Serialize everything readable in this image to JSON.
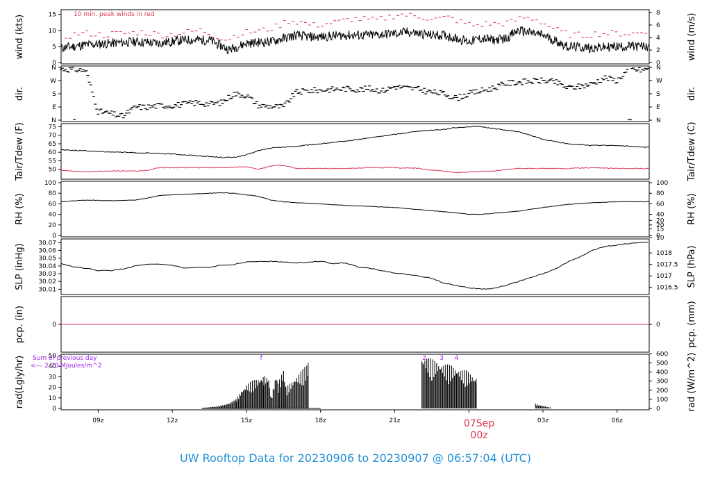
{
  "page": {
    "title": "UW Rooftop Data for 20230906  to  20230907 @ 06:57:04  (UTC)",
    "date_marker": "07Sep",
    "date_marker_sub": "00z"
  },
  "colors": {
    "data": "#000000",
    "red": "#dd3355",
    "purple": "#a020f0",
    "title": "#1f8fd6"
  },
  "chart_data": [
    {
      "type": "line",
      "name": "wind",
      "ylabel": "wind (kts)",
      "ylabel_right": "wind (m/s)",
      "ylim": [
        0,
        16
      ],
      "yticks": [
        0,
        5,
        10,
        15
      ],
      "yticks_right": [
        0,
        2,
        4,
        6,
        8
      ],
      "ylim_right": [
        0,
        8.23
      ],
      "annotation": "10 min. peak winds in red",
      "series": [
        {
          "x": [
            7.5,
            8.5,
            9.5,
            10.5,
            11.5,
            12.5,
            13.5,
            14.3,
            15,
            16,
            17,
            17.5,
            18,
            19,
            20,
            21,
            21.5,
            22,
            22.5,
            23,
            23.5,
            24,
            24.5,
            25,
            25.5,
            26,
            27,
            28,
            29,
            30,
            31,
            31.3
          ],
          "values": [
            4.5,
            5.5,
            6,
            6.5,
            6,
            7,
            7,
            4,
            6,
            6.5,
            8.5,
            8,
            8,
            8.5,
            8.5,
            9,
            9.5,
            9,
            8.5,
            8.5,
            7.5,
            6.5,
            7.5,
            7,
            7.5,
            10,
            8.5,
            5,
            4.5,
            5,
            5,
            5
          ]
        },
        {
          "name": "10 min. peak winds",
          "x": [
            7.7,
            8.2,
            8.7,
            9.2,
            9.7,
            10.2,
            10.7,
            11.2,
            11.7,
            12.2,
            12.7,
            13.2,
            13.7,
            14.2,
            14.7,
            15.2,
            15.7,
            16.2,
            16.7,
            17.2,
            17.7,
            18.2,
            18.7,
            19.2,
            19.7,
            20.2,
            20.7,
            21.2,
            21.7,
            22.2,
            22.7,
            23.2,
            23.7,
            24.2,
            24.7,
            25.2,
            25.7,
            26.2,
            26.7,
            27.2,
            27.7,
            28.2,
            28.7,
            29.2,
            29.7,
            30.2,
            30.7,
            31.2
          ],
          "values": [
            8,
            9,
            9,
            8.5,
            9,
            9,
            9.5,
            9,
            8.5,
            9,
            9.5,
            10,
            8.5,
            7,
            9,
            9.5,
            10,
            11,
            13,
            12.5,
            11.5,
            12,
            12.5,
            13.5,
            13.5,
            13,
            14,
            15,
            14.5,
            14,
            13.5,
            14,
            12.5,
            11.5,
            12,
            12,
            12.5,
            14,
            13.5,
            11.5,
            9.5,
            8.5,
            8.5,
            9,
            9,
            9,
            9,
            9.5
          ]
        }
      ]
    },
    {
      "type": "scatter",
      "name": "dir",
      "ylabel": "dir.",
      "ylabel_right": "dir.",
      "ylim": [
        0,
        360
      ],
      "yticks": [
        0,
        90,
        180,
        270,
        360
      ],
      "ytick_labels": [
        "N",
        "E",
        "S",
        "W",
        "N"
      ],
      "series": [
        {
          "x": [
            7.5,
            8,
            8.5,
            9,
            9.5,
            10,
            10.5,
            11,
            11.5,
            12,
            12.5,
            13,
            13.5,
            14,
            14.5,
            15,
            15.5,
            16,
            16.5,
            17,
            17.5,
            18,
            18.5,
            19,
            19.5,
            20,
            20.5,
            21,
            21.5,
            22,
            22.5,
            23,
            23.5,
            24,
            24.5,
            25,
            25.5,
            26,
            26.5,
            27,
            27.5,
            28,
            28.5,
            29,
            29.5,
            30,
            30.5,
            31,
            31.3
          ],
          "values": [
            350,
            345,
            340,
            60,
            45,
            25,
            90,
            90,
            100,
            100,
            110,
            120,
            110,
            120,
            180,
            170,
            100,
            95,
            90,
            190,
            200,
            205,
            210,
            215,
            210,
            215,
            200,
            230,
            220,
            210,
            190,
            180,
            150,
            180,
            200,
            220,
            250,
            260,
            265,
            270,
            260,
            220,
            230,
            250,
            290,
            270,
            350,
            340,
            350
          ]
        }
      ]
    },
    {
      "type": "line",
      "name": "temp",
      "ylabel": "Tair/Tdew (F)",
      "ylabel_right": "Tair/Tdew (C)",
      "ylim": [
        45,
        76
      ],
      "yticks": [
        50,
        55,
        60,
        65,
        70,
        75
      ],
      "yticks_right": [
        10,
        15,
        20
      ],
      "series": [
        {
          "name": "Tair",
          "x": [
            7.5,
            9,
            10,
            11,
            12,
            13,
            14,
            14.5,
            15,
            15.5,
            16,
            17,
            18,
            19,
            20,
            21,
            22,
            23,
            23.5,
            24,
            24.5,
            25,
            25.5,
            26,
            26.5,
            27,
            28,
            29,
            30,
            31,
            31.3
          ],
          "values": [
            61.5,
            60.5,
            60,
            59.5,
            59,
            58,
            57,
            57,
            58.5,
            61,
            62.5,
            63.5,
            65,
            66.5,
            68.5,
            70.5,
            72.5,
            73.5,
            74.5,
            75,
            75,
            74,
            73,
            72,
            70,
            67.5,
            65,
            64,
            64,
            63,
            63
          ]
        },
        {
          "name": "Tdew",
          "x": [
            7.5,
            8.5,
            9.5,
            10.5,
            11,
            11.5,
            12,
            13,
            14,
            15,
            15.5,
            16,
            16.3,
            16.6,
            17,
            18,
            19,
            20,
            21,
            22,
            22.5,
            23,
            23.5,
            24,
            25,
            26,
            27,
            28,
            29,
            30,
            31,
            31.3
          ],
          "values": [
            49.5,
            48.5,
            49,
            49,
            49.5,
            51,
            51,
            51,
            51,
            51.5,
            50,
            52,
            52.5,
            52,
            50.5,
            50.5,
            50.5,
            51,
            51,
            50.5,
            49.5,
            49,
            48,
            48.5,
            49,
            50.5,
            50.5,
            50.5,
            51,
            50.5,
            50.5,
            50.5
          ]
        }
      ]
    },
    {
      "type": "line",
      "name": "rh",
      "ylabel": "RH (%)",
      "ylabel_right": "RH (%)",
      "ylim": [
        0,
        100
      ],
      "yticks": [
        0,
        20,
        40,
        60,
        80,
        100
      ],
      "series": [
        {
          "x": [
            7.5,
            8.5,
            9.5,
            10.5,
            11,
            11.5,
            12,
            13,
            14,
            14.5,
            15,
            15.5,
            16,
            16.5,
            17,
            18,
            19,
            20,
            21,
            22,
            23,
            23.5,
            24,
            24.5,
            25,
            26,
            27,
            28,
            29,
            30,
            31,
            31.3
          ],
          "values": [
            64,
            67,
            66,
            67,
            71,
            76,
            77,
            79,
            81,
            80,
            77,
            74,
            67,
            64,
            62,
            60,
            57,
            55,
            53,
            49,
            45,
            43,
            40,
            40,
            42,
            46,
            53,
            59,
            62,
            64,
            64,
            64
          ]
        }
      ]
    },
    {
      "type": "line",
      "name": "slp",
      "ylabel": "SLP (inHg)",
      "ylabel_right": "SLP (hPa)",
      "ylim": [
        30.005,
        30.073
      ],
      "yticks": [
        30.01,
        30.02,
        30.03,
        30.04,
        30.05,
        30.06,
        30.07
      ],
      "yticks_right": [
        1016.5,
        1017,
        1017.5,
        1018
      ],
      "ylim_right": [
        1016.25,
        1018.55
      ],
      "series": [
        {
          "x": [
            7.5,
            8,
            8.5,
            9,
            9.5,
            10,
            10.5,
            11,
            11.5,
            12,
            12.5,
            13,
            13.5,
            14,
            14.5,
            15,
            15.5,
            16,
            16.5,
            17,
            17.5,
            18,
            18.5,
            19,
            19.5,
            20,
            20.5,
            21,
            21.5,
            22,
            22.5,
            23,
            23.5,
            24,
            24.5,
            25,
            25.5,
            26,
            26.5,
            27,
            27.5,
            28,
            28.5,
            29,
            29.5,
            30,
            30.5,
            31,
            31.3
          ],
          "values": [
            30.043,
            30.039,
            30.037,
            30.034,
            30.034,
            30.036,
            30.04,
            30.042,
            30.042,
            30.041,
            30.037,
            30.038,
            30.038,
            30.041,
            30.042,
            30.045,
            30.046,
            30.046,
            30.045,
            30.044,
            30.045,
            30.046,
            30.043,
            30.044,
            30.039,
            30.037,
            30.034,
            30.031,
            30.029,
            30.027,
            30.024,
            30.018,
            30.015,
            30.012,
            30.01,
            30.011,
            30.015,
            30.02,
            30.025,
            30.03,
            30.036,
            30.045,
            30.052,
            30.06,
            30.065,
            30.067,
            30.069,
            30.07,
            30.071
          ]
        }
      ]
    },
    {
      "type": "line",
      "name": "pcp",
      "ylabel": "pcp. (in)",
      "ylabel_right": "pcp. (mm)",
      "ylim": [
        -1,
        1
      ],
      "yticks": [
        0
      ],
      "yticks_right": [
        0
      ],
      "series": [
        {
          "x": [
            7.5,
            31.3
          ],
          "values": [
            0,
            0
          ]
        }
      ]
    },
    {
      "type": "bar",
      "name": "rad",
      "ylabel": "rad(Lgly/hr)",
      "ylabel_right": "rad (W/m^2)",
      "ylim": [
        0,
        50
      ],
      "yticks": [
        0,
        10,
        20,
        30,
        40,
        50
      ],
      "yticks_right": [
        0,
        100,
        200,
        300,
        400,
        500,
        600
      ],
      "ylim_right": [
        0,
        580
      ],
      "annotations": [
        "Sum of previous day",
        "<--- 2.70 MJoules/m^2"
      ],
      "markers": [
        "f",
        "2",
        "3",
        "4"
      ],
      "xlabel_ticks": [
        "09z",
        "12z",
        "15z",
        "18z",
        "21z",
        "00z",
        "03z",
        "06z"
      ],
      "xtick_hours": [
        9,
        12,
        15,
        18,
        21,
        24,
        27,
        30
      ],
      "xlim": [
        7.5,
        31.3
      ],
      "series": [
        {
          "x": [
            13.2,
            13.6,
            14.0,
            14.3,
            14.6,
            14.8,
            15.0,
            15.2,
            15.4,
            15.6,
            15.7,
            15.9,
            16.0,
            16.2,
            16.3,
            16.5,
            16.6,
            17.5,
            22.1,
            22.3,
            22.5,
            22.7,
            22.9,
            23.1,
            23.3,
            23.5,
            23.7,
            23.9,
            24.1,
            24.3,
            26.7,
            26.9,
            27.1,
            27.3
          ],
          "values": [
            0.5,
            1.5,
            3,
            5,
            10,
            17,
            23,
            26,
            28,
            30,
            32,
            30,
            10,
            33,
            25,
            38,
            20,
            43,
            50,
            49,
            47,
            45,
            43,
            42,
            41,
            39,
            37,
            36,
            33,
            28,
            4.5,
            3,
            2,
            1
          ]
        }
      ]
    }
  ]
}
